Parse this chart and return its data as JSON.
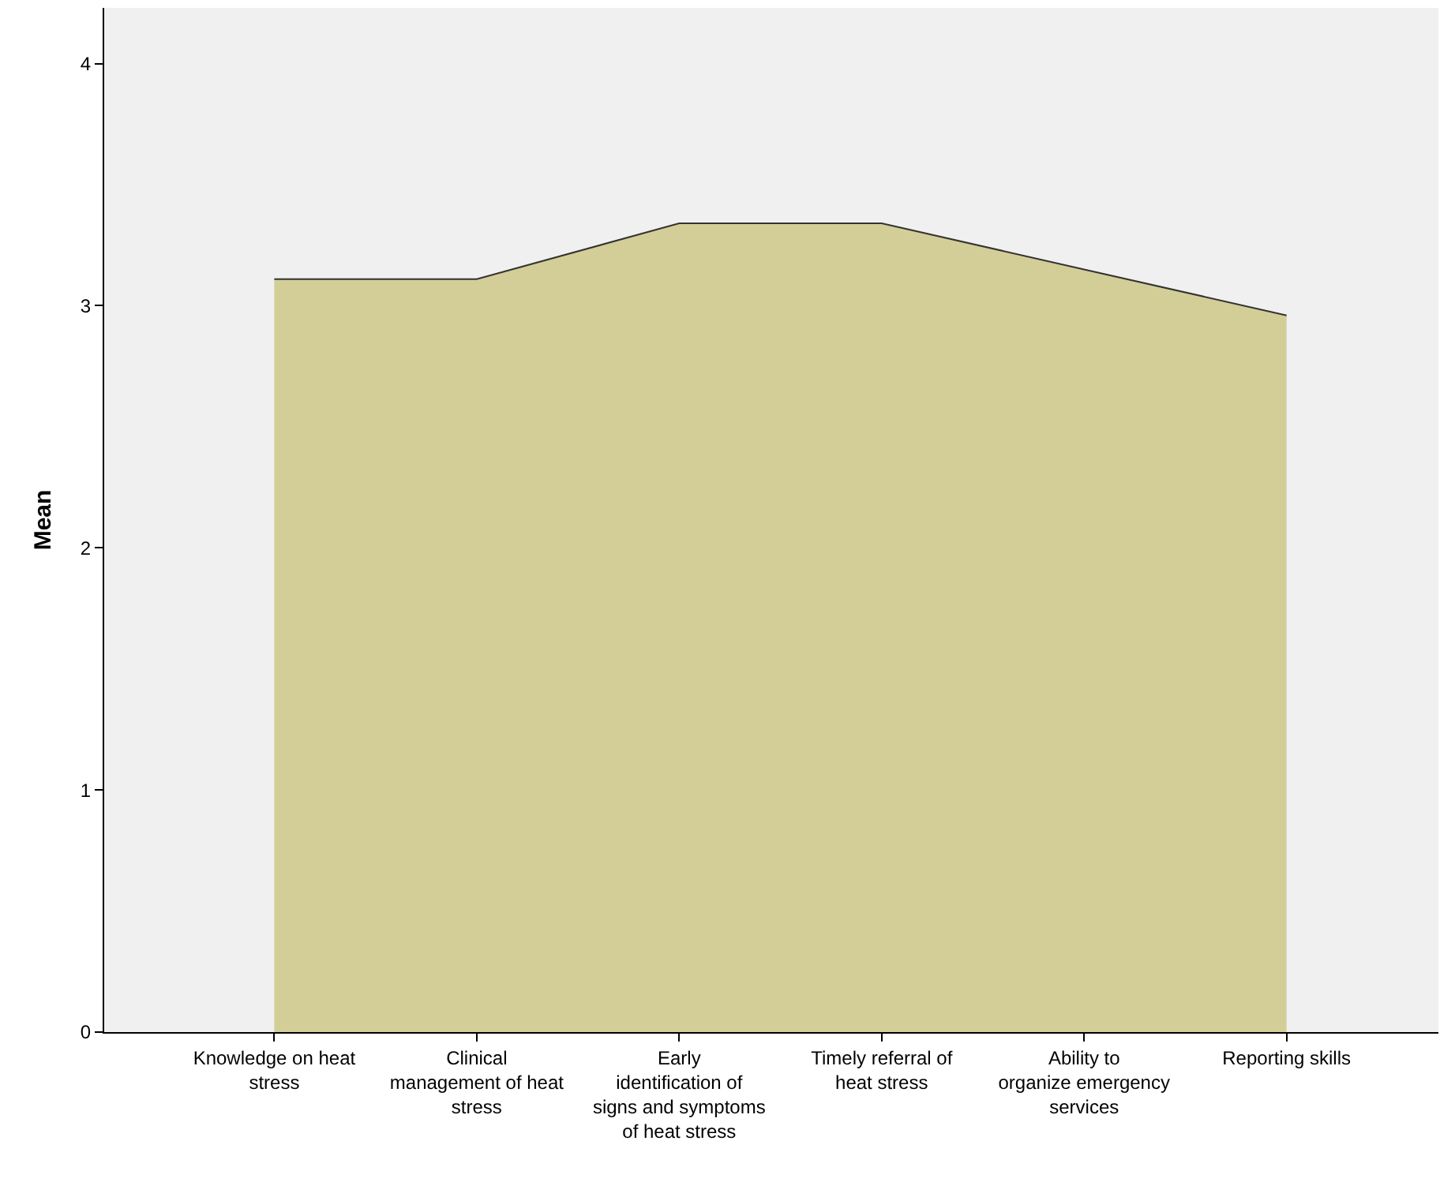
{
  "chart_data": {
    "type": "area",
    "ylabel": "Mean",
    "categories": [
      "Knowledge on heat stress",
      "Clinical management of heat stress",
      "Early identification of signs and symptoms of heat stress",
      "Timely referral of heat stress",
      "Ability to organize emergency services",
      "Reporting skills"
    ],
    "values": [
      3.11,
      3.11,
      3.34,
      3.34,
      3.15,
      2.96
    ],
    "color": "#d3ce97",
    "ylim": [
      0,
      4.23
    ],
    "yticks": [
      0,
      1,
      2,
      3,
      4
    ],
    "grid": false,
    "legend": false
  }
}
